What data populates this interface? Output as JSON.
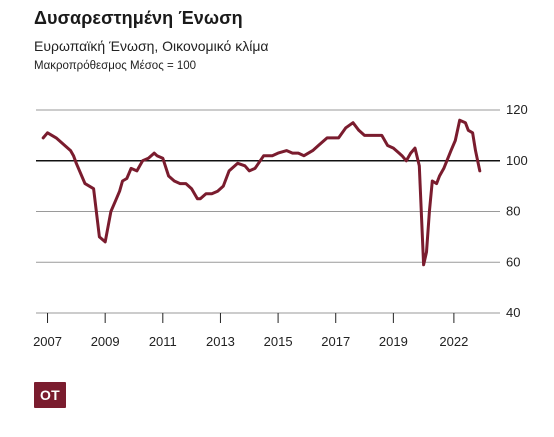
{
  "title": "Δυσαρεστημένη Ένωση",
  "subtitle": "Ευρωπαϊκή Ένωση, Οικονομικό κλίμα",
  "note": "Μακροπρόθεσμος Μέσος = 100",
  "logo_text": "ΟΤ",
  "chart_data": {
    "type": "line",
    "title": "Δυσαρεστημένη Ένωση",
    "subtitle": "Ευρωπαϊκή Ένωση, Οικονομικό κλίμα",
    "xlabel": "",
    "ylabel": "",
    "ylim": [
      40,
      120
    ],
    "xlim": [
      2006.6,
      2022.7
    ],
    "y_ticks": [
      40,
      60,
      80,
      100,
      120
    ],
    "x_tick_labels": [
      "2007",
      "2009",
      "2011",
      "2013",
      "2015",
      "2017",
      "2019",
      "2022"
    ],
    "x_tick_values": [
      2007,
      2009,
      2011,
      2013,
      2015,
      2017,
      2019,
      2021.1
    ],
    "reference_line": 100,
    "grid": true,
    "color": "#7a1c2e",
    "series": [
      {
        "x": [
          2006.85,
          2007.0,
          2007.3,
          2007.6,
          2007.8,
          2007.9,
          2008.0,
          2008.3,
          2008.6,
          2008.8,
          2009.0,
          2009.2,
          2009.35,
          2009.5,
          2009.6,
          2009.75,
          2009.9,
          2010.1,
          2010.3,
          2010.5,
          2010.7,
          2010.8,
          2011.0,
          2011.2,
          2011.4,
          2011.6,
          2011.8,
          2012.0,
          2012.2,
          2012.3,
          2012.5,
          2012.7,
          2012.9,
          2013.1,
          2013.3,
          2013.6,
          2013.85,
          2014.0,
          2014.2,
          2014.5,
          2014.8,
          2015.0,
          2015.3,
          2015.5,
          2015.7,
          2015.9,
          2016.2,
          2016.4,
          2016.7,
          2016.9,
          2017.1,
          2017.35,
          2017.6,
          2017.8,
          2018.0,
          2018.3,
          2018.6,
          2018.8,
          2019.0,
          2019.2,
          2019.3,
          2019.45,
          2019.6,
          2019.75,
          2019.9,
          2020.05,
          2020.15,
          2020.25,
          2020.35,
          2020.5,
          2020.6,
          2020.75,
          2021.0,
          2021.15,
          2021.3,
          2021.5,
          2021.6,
          2021.75,
          2021.85,
          2022.0
        ],
        "values": [
          109,
          111,
          109,
          106,
          104,
          102,
          99,
          91,
          89,
          70,
          68,
          80,
          84,
          88,
          92,
          93,
          97,
          96,
          100,
          101,
          103,
          102,
          101,
          94,
          92,
          91,
          91,
          89,
          85,
          85,
          87,
          87,
          88,
          90,
          96,
          99,
          98,
          96,
          97,
          102,
          102,
          103,
          104,
          103,
          103,
          102,
          104,
          106,
          109,
          109,
          109,
          113,
          115,
          112,
          110,
          110,
          110,
          106,
          105,
          103,
          102,
          100,
          103,
          105,
          98,
          59,
          64,
          80,
          92,
          91,
          94,
          97,
          104,
          108,
          116,
          115,
          112,
          111,
          104,
          96
        ]
      }
    ]
  }
}
